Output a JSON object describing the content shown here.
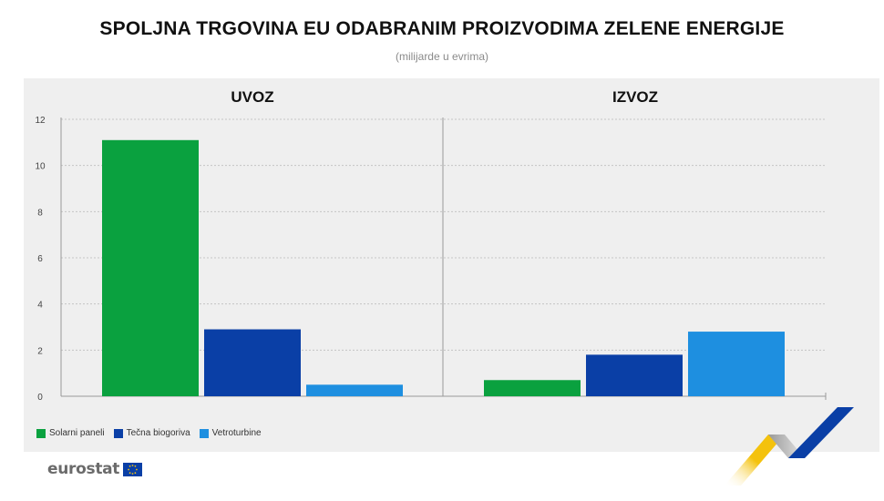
{
  "header": {
    "title": "SPOLJNA TRGOVINA EU ODABRANIM PROIZVODIMA ZELENE ENERGIJE",
    "subtitle": "(milijarde u evrima)"
  },
  "colors": {
    "solar": "#0aa13f",
    "biofuel": "#0a3fa6",
    "wind": "#1e8fe0",
    "panel_bg": "#efefef",
    "grid": "#c4c4c4",
    "logo_yellow": "#f4c20d",
    "logo_blue": "#0a3fa6"
  },
  "legend": [
    {
      "label": "Solarni paneli",
      "color": "#0aa13f"
    },
    {
      "label": "Tečna biogoriva",
      "color": "#0a3fa6"
    },
    {
      "label": "Vetroturbine",
      "color": "#1e8fe0"
    }
  ],
  "brand": {
    "logo_text": "eurostat",
    "flag_icon": "eu-flag-icon"
  },
  "chart_data": {
    "type": "bar",
    "ylim": [
      0,
      12
    ],
    "yticks": [
      "0",
      "2",
      "4",
      "6",
      "8",
      "10",
      "12"
    ],
    "grid": true,
    "legend_position": "bottom-left",
    "panels": [
      {
        "title": "UVOZ",
        "series": [
          {
            "name": "Solarni paneli",
            "value": 11.1
          },
          {
            "name": "Tečna biogoriva",
            "value": 2.9
          },
          {
            "name": "Vetroturbine",
            "value": 0.5
          }
        ]
      },
      {
        "title": "IZVOZ",
        "series": [
          {
            "name": "Solarni paneli",
            "value": 0.7
          },
          {
            "name": "Tečna biogoriva",
            "value": 1.8
          },
          {
            "name": "Vetroturbine",
            "value": 2.8
          }
        ]
      }
    ]
  }
}
